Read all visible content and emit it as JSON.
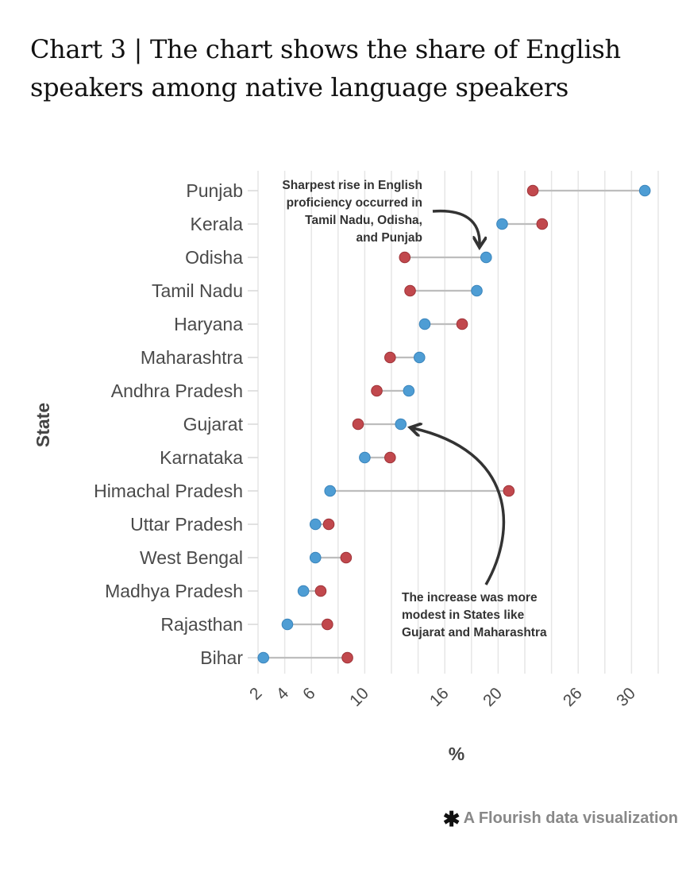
{
  "title": "Chart 3 | The chart shows the share of English speakers among native language speakers",
  "footer": {
    "text": "A Flourish data visualization",
    "icon": "asterisk-icon"
  },
  "colors": {
    "series_a": "#c1484d",
    "series_b": "#4e9dd4",
    "connector": "#bdbdbd",
    "grid": "#e6e6e6"
  },
  "annotations": [
    {
      "lines": [
        "Sharpest rise in English",
        "proficiency occurred in",
        "Tamil Nadu, Odisha,",
        "and Punjab"
      ]
    },
    {
      "lines": [
        "The increase was more",
        "modest in States like",
        "Gujarat and Maharashtra"
      ]
    }
  ],
  "chart_data": {
    "type": "dot-plot",
    "title": "Chart 3 | The chart shows the share of English speakers among native language speakers",
    "xlabel": "%",
    "ylabel": "State",
    "xlim": [
      2,
      32
    ],
    "xticks": [
      2,
      4,
      6,
      10,
      16,
      20,
      26,
      30
    ],
    "grid": true,
    "legend": "none",
    "categories": [
      "Punjab",
      "Kerala",
      "Odisha",
      "Tamil Nadu",
      "Haryana",
      "Maharashtra",
      "Andhra Pradesh",
      "Gujarat",
      "Karnataka",
      "Himachal Pradesh",
      "Uttar Pradesh",
      "West Bengal",
      "Madhya Pradesh",
      "Rajasthan",
      "Bihar"
    ],
    "series": [
      {
        "color": "#c1484d",
        "values": [
          22.6,
          23.3,
          13.0,
          13.4,
          17.3,
          11.9,
          10.9,
          9.5,
          11.9,
          20.8,
          7.3,
          8.6,
          6.7,
          7.2,
          8.7
        ]
      },
      {
        "color": "#4e9dd4",
        "values": [
          31.0,
          20.3,
          19.1,
          18.4,
          14.5,
          14.1,
          13.3,
          12.7,
          10.0,
          7.4,
          6.3,
          6.3,
          5.4,
          4.2,
          2.4
        ]
      }
    ]
  }
}
